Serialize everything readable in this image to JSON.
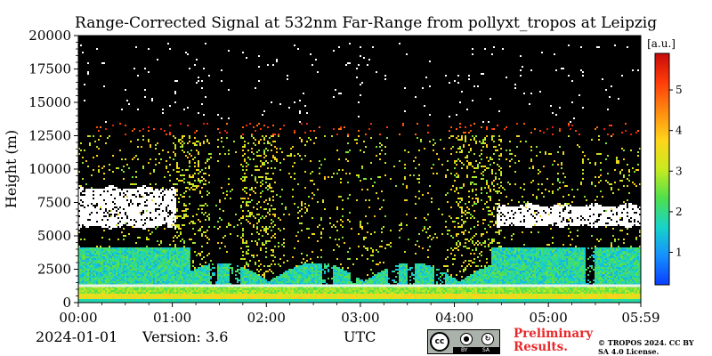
{
  "chart_data": {
    "type": "heatmap",
    "title": "Range-Corrected Signal at 532nm Far-Range from pollyxt_tropos at Leipzig",
    "ylabel": "Height (m)",
    "xlabel": "UTC",
    "x_ticks": [
      "00:00",
      "01:00",
      "02:00",
      "03:00",
      "04:00",
      "05:00",
      "05:59"
    ],
    "x_range_hours": [
      0,
      5.983
    ],
    "y_ticks": [
      0,
      2500,
      5000,
      7500,
      10000,
      12500,
      15000,
      17500,
      20000
    ],
    "ylim": [
      0,
      20000
    ],
    "colorbar": {
      "label": "[a.u.]",
      "ticks": [
        1,
        2,
        3,
        4,
        5
      ],
      "range": [
        0.2,
        5.9
      ],
      "colormap": [
        "#0a3dff",
        "#1590ff",
        "#17d4c8",
        "#4fe04c",
        "#c8ea20",
        "#ffd41a",
        "#ff8a10",
        "#ff3c0a",
        "#c80a0a"
      ]
    },
    "features": {
      "boundary_layer_top_m": 1300,
      "aerosol_layer_top_m": 4200,
      "cloud_layers": [
        {
          "label": "cloud",
          "start_h": 0.0,
          "end_h": 1.05,
          "base_m": 5500,
          "top_m": 8800
        },
        {
          "label": "cloud",
          "start_h": 4.45,
          "end_h": 5.98,
          "base_m": 5600,
          "top_m": 7500
        }
      ]
    }
  },
  "footer": {
    "date": "2024-01-01",
    "version": "Version: 3.6",
    "time_axis": "UTC",
    "preliminary": "Preliminary Results.",
    "copyright": "© TROPOS 2024. CC BY SA 4.0 License.",
    "license_badge": {
      "cc": "cc",
      "by": "BY",
      "sa": "SA"
    }
  }
}
